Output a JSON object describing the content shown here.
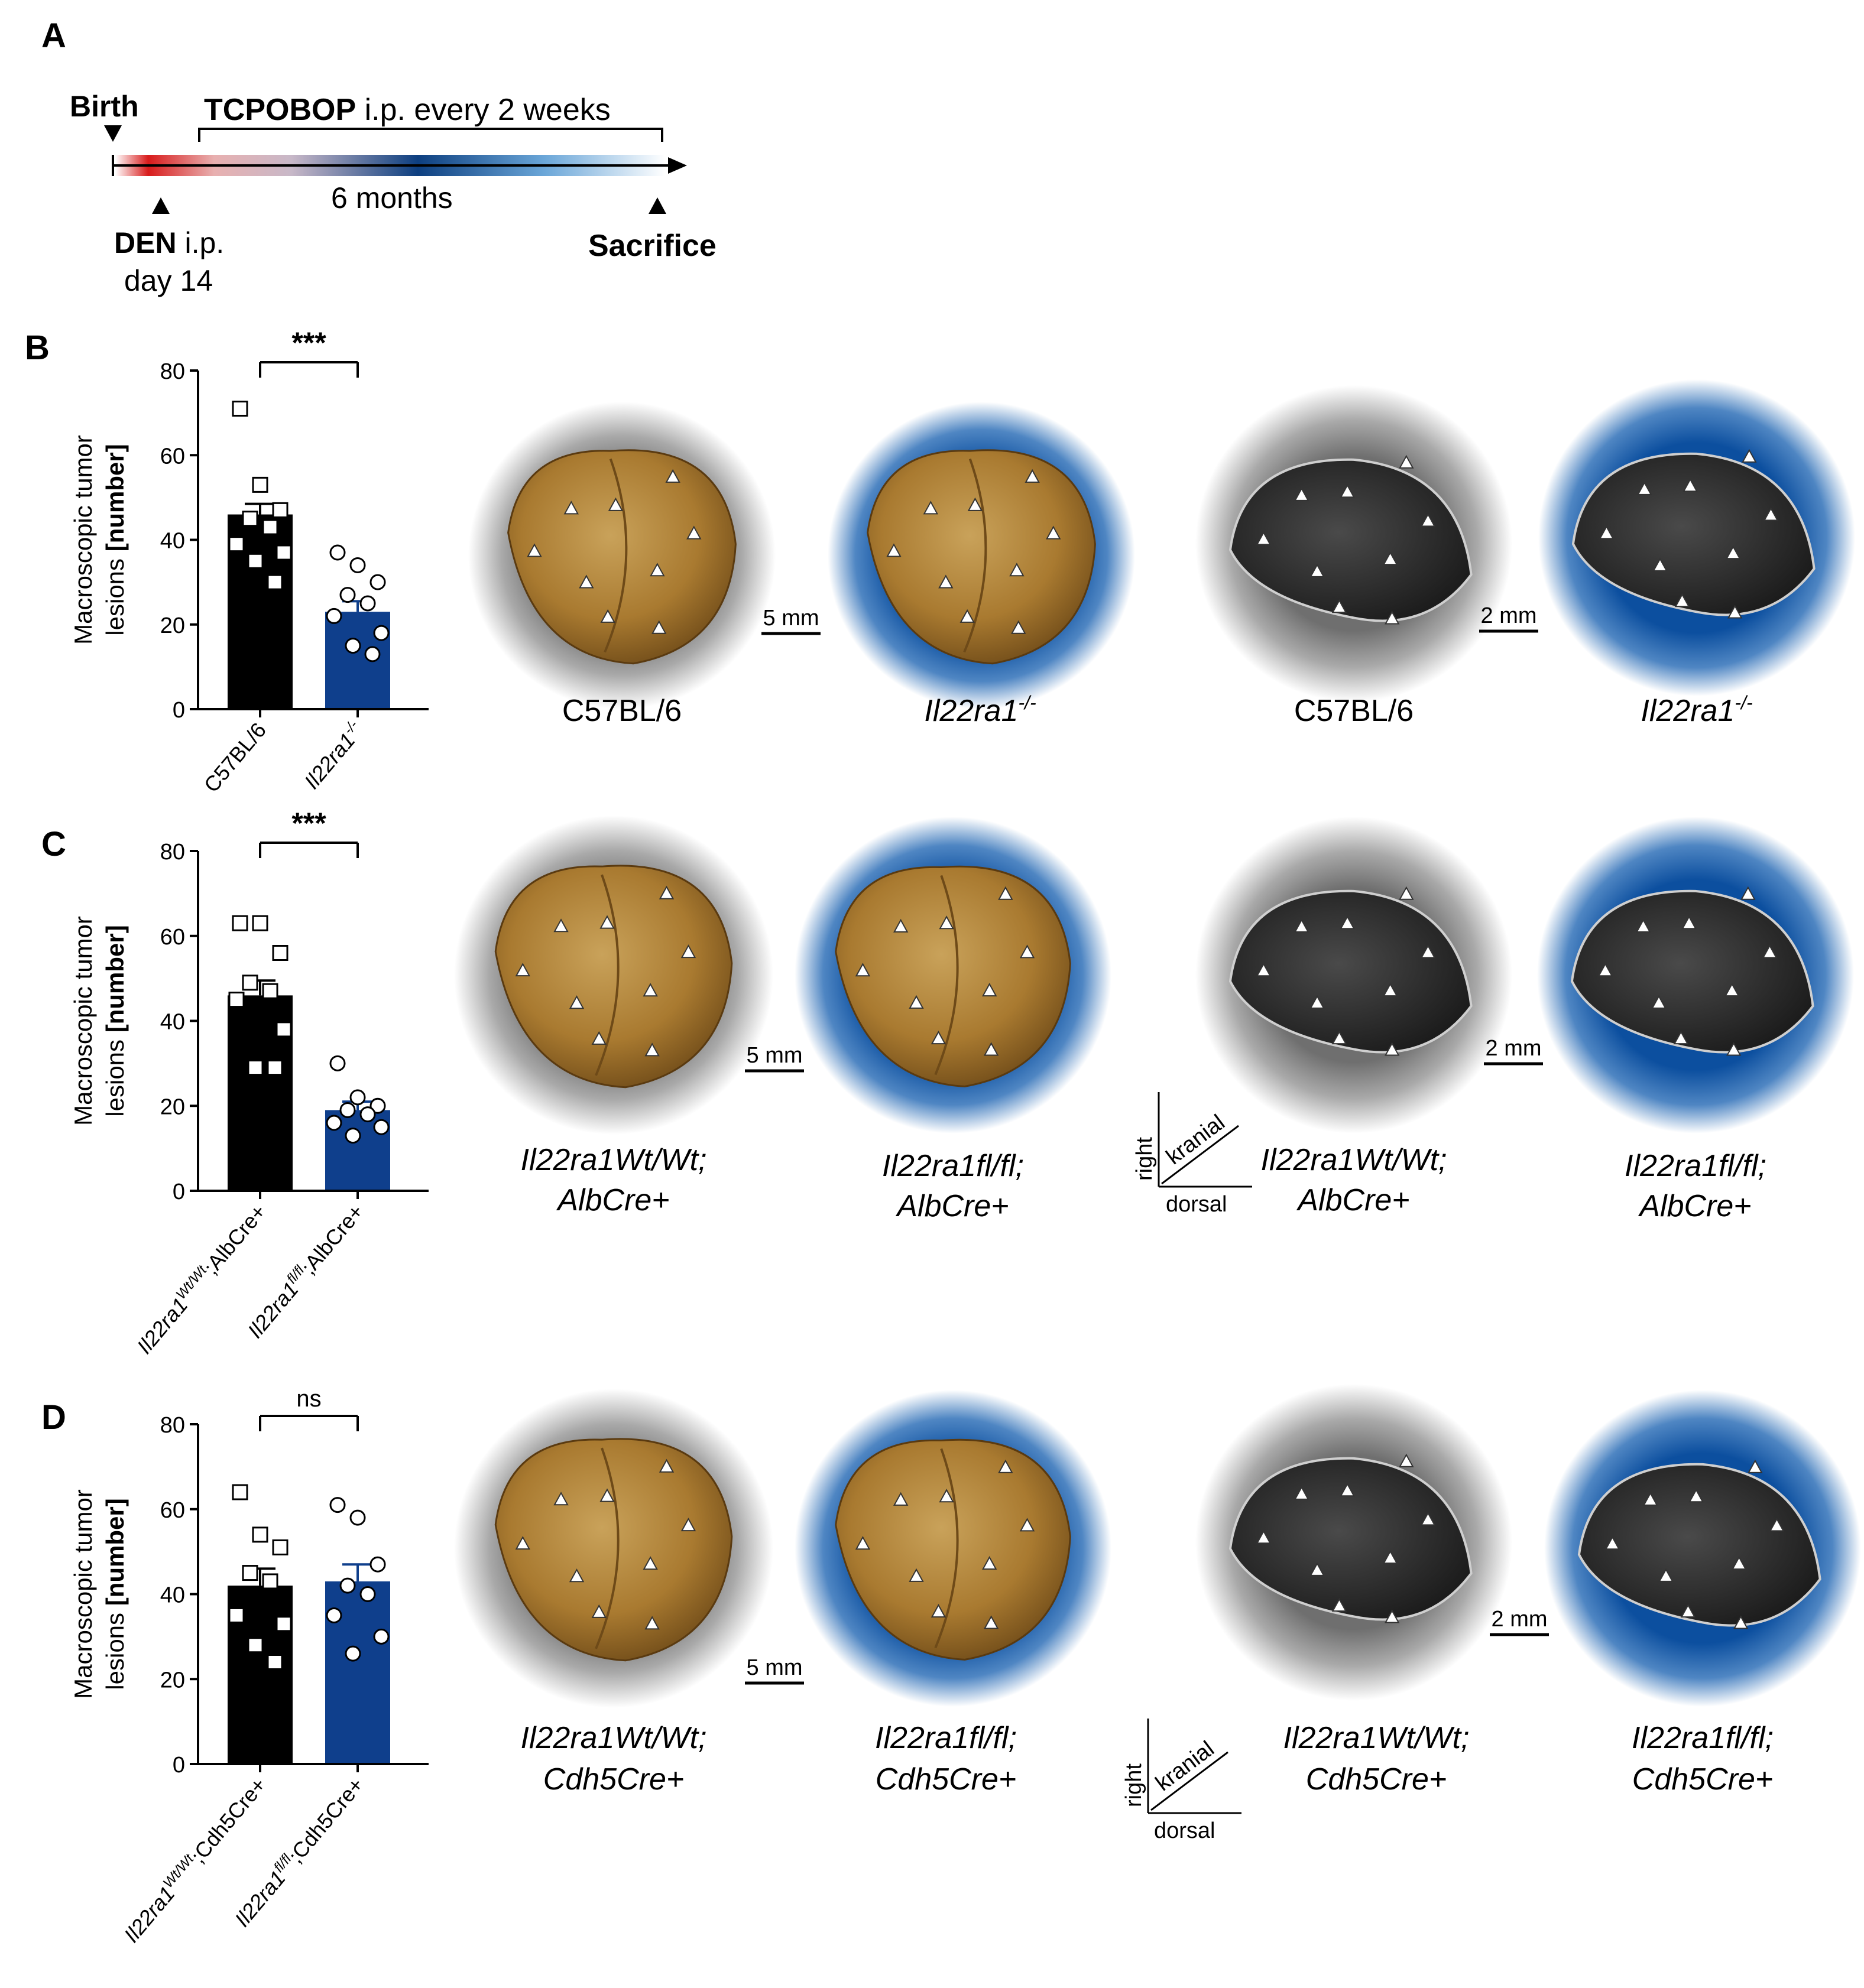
{
  "panel_labels": {
    "a": "A",
    "b": "B",
    "c": "C",
    "d": "D"
  },
  "timeline": {
    "birth": "Birth",
    "treatment_bold": "TCPOBOP",
    "treatment_rest": " i.p. every 2 weeks",
    "duration": "6 months",
    "den_bold": "DEN",
    "den_rest": " i.p.",
    "den_day": "day 14",
    "sacrifice": "Sacrifice"
  },
  "colors": {
    "bar_wt": "#000000",
    "bar_ko": "#0f3f8c",
    "halo_wt": "#7a7a7a",
    "halo_ko": "#0d4f9e",
    "liver": "#a67a2c",
    "mri": "#2e2e2e"
  },
  "chart_data": [
    {
      "panel": "B",
      "type": "bar",
      "ylabel_line1": "Macroscopic tumor",
      "ylabel_line2_pre": "lesions ",
      "ylabel_line2_bold": "[number]",
      "ylim": [
        0,
        80
      ],
      "yticks": [
        0,
        20,
        40,
        60,
        80
      ],
      "significance": "***",
      "categories": [
        {
          "base": "C57BL/6",
          "sup": "",
          "tail": ""
        },
        {
          "base": "Il22ra1",
          "sup": "-/-",
          "tail": ""
        }
      ],
      "series": [
        {
          "mean": 46,
          "sem": 2.5,
          "marker": "square",
          "points": [
            71,
            53,
            47,
            45,
            43,
            39,
            37,
            35,
            30
          ]
        },
        {
          "mean": 23,
          "sem": 2.5,
          "marker": "circle",
          "points": [
            37,
            34,
            30,
            27,
            25,
            22,
            18,
            15,
            13
          ]
        }
      ]
    },
    {
      "panel": "C",
      "type": "bar",
      "ylabel_line1": "Macroscopic tumor",
      "ylabel_line2_pre": "lesions ",
      "ylabel_line2_bold": "[number]",
      "ylim": [
        0,
        80
      ],
      "yticks": [
        0,
        20,
        40,
        60,
        80
      ],
      "significance": "***",
      "categories": [
        {
          "base": "Il22ra1",
          "sup": "Wt/Wt",
          "tail": ";AlbCre+"
        },
        {
          "base": "Il22ra1",
          "sup": "fl/fl",
          "tail": ";AlbCre+"
        }
      ],
      "series": [
        {
          "mean": 46,
          "sem": 3.5,
          "marker": "square",
          "points": [
            63,
            63,
            56,
            49,
            47,
            45,
            38,
            29,
            29
          ]
        },
        {
          "mean": 19,
          "sem": 2,
          "marker": "circle",
          "points": [
            30,
            22,
            20,
            19,
            18,
            16,
            15,
            13
          ]
        }
      ]
    },
    {
      "panel": "D",
      "type": "bar",
      "ylabel_line1": "Macroscopic tumor",
      "ylabel_line2_pre": "lesions ",
      "ylabel_line2_bold": "[number]",
      "ylim": [
        0,
        80
      ],
      "yticks": [
        0,
        20,
        40,
        60,
        80
      ],
      "significance": "ns",
      "categories": [
        {
          "base": "Il22ra1",
          "sup": "Wt/Wt",
          "tail": ";Cdh5Cre+"
        },
        {
          "base": "Il22ra1",
          "sup": "fl/fl",
          "tail": ";Cdh5Cre+"
        }
      ],
      "series": [
        {
          "mean": 42,
          "sem": 4,
          "marker": "square",
          "points": [
            64,
            54,
            51,
            45,
            43,
            35,
            33,
            28,
            24
          ]
        },
        {
          "mean": 43,
          "sem": 4,
          "marker": "circle",
          "points": [
            61,
            58,
            47,
            42,
            40,
            35,
            30,
            26
          ]
        }
      ]
    }
  ],
  "images": {
    "scale_liver": "5 mm",
    "scale_mri": "2 mm",
    "row_b": {
      "wt": "C57BL/6",
      "ko_base": "Il22ra1",
      "ko_sup": "-/-"
    },
    "row_c": {
      "wt1": "Il22ra1Wt/Wt;",
      "wt2": "AlbCre+",
      "ko1": "Il22ra1fl/fl;",
      "ko2": "AlbCre+"
    },
    "row_d": {
      "wt1": "Il22ra1Wt/Wt;",
      "wt2": "Cdh5Cre+",
      "ko1": "Il22ra1fl/fl;",
      "ko2": "Cdh5Cre+"
    },
    "orientation": {
      "right": "right",
      "kranial": "kranial",
      "dorsal": "dorsal"
    }
  }
}
